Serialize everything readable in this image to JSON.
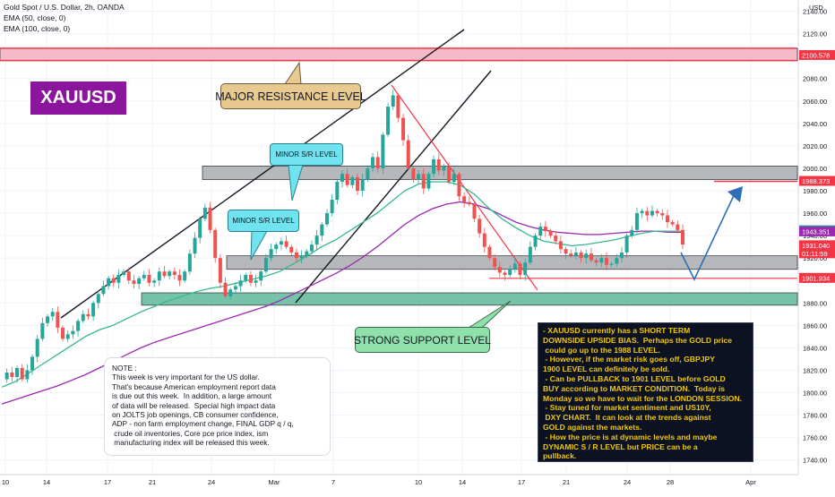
{
  "header": {
    "symbol_line": "Gold Spot / U.S. Dollar, 2h, OANDA",
    "indicator_1": "EMA (50, close, 0)",
    "indicator_2": "EMA (100, close, 0)",
    "currency": "USD"
  },
  "chart_data": {
    "type": "candlestick",
    "title": "Gold Spot / U.S. Dollar, 2h, OANDA",
    "symbol_tag": "XAUUSD",
    "y_axis": {
      "unit": "USD",
      "range": [
        1727,
        2150
      ],
      "ticks": [
        2140,
        2120,
        2100,
        2080,
        2060,
        2040,
        2020,
        2000,
        1980,
        1960,
        1940,
        1920,
        1900,
        1880,
        1860,
        1840,
        1820,
        1800,
        1780,
        1760,
        1740
      ]
    },
    "x_axis": {
      "ticks": [
        "10",
        "14",
        "17",
        "21",
        "24",
        "Mar",
        "7",
        "10",
        "14",
        "17",
        "21",
        "24",
        "28",
        "Apr"
      ]
    },
    "price_labels": [
      {
        "value": 2100.578,
        "text": "2100.578",
        "color": "#f23645"
      },
      {
        "value": 1988.373,
        "text": "1988.373",
        "color": "#f23645"
      },
      {
        "value": 1944.44,
        "text": "1944.440",
        "color": "#26a69a"
      },
      {
        "value": 1943.351,
        "text": "1943.351",
        "color": "#9c27b0"
      },
      {
        "value": 1931.04,
        "text": "1931.040",
        "color": "#f23645",
        "sub": "01:11:59"
      },
      {
        "value": 1901.934,
        "text": "1901.934",
        "color": "#f23645"
      }
    ],
    "price_path": [
      1812,
      1818,
      1814,
      1822,
      1812,
      1820,
      1832,
      1848,
      1862,
      1868,
      1872,
      1858,
      1848,
      1852,
      1855,
      1864,
      1870,
      1868,
      1880,
      1888,
      1895,
      1902,
      1898,
      1905,
      1908,
      1900,
      1897,
      1902,
      1905,
      1898,
      1900,
      1908,
      1904,
      1908,
      1905,
      1900,
      1908,
      1924,
      1938,
      1955,
      1965,
      1945,
      1920,
      1898,
      1886,
      1892,
      1895,
      1900,
      1905,
      1898,
      1900,
      1908,
      1920,
      1928,
      1932,
      1935,
      1930,
      1925,
      1920,
      1922,
      1926,
      1932,
      1940,
      1950,
      1960,
      1972,
      1988,
      1995,
      1985,
      1992,
      1980,
      1990,
      2000,
      2010,
      2000,
      2030,
      2055,
      2065,
      2045,
      2025,
      2000,
      1990,
      1995,
      1982,
      1995,
      2008,
      1998,
      2002,
      1988,
      1995,
      1975,
      1970,
      1968,
      1955,
      1942,
      1930,
      1920,
      1912,
      1907,
      1905,
      1910,
      1915,
      1905,
      1916,
      1930,
      1940,
      1948,
      1944,
      1940,
      1935,
      1928,
      1924,
      1922,
      1925,
      1920,
      1924,
      1918,
      1916,
      1920,
      1914,
      1915,
      1920,
      1925,
      1940,
      1945,
      1960,
      1962,
      1958,
      1962,
      1960,
      1958,
      1952,
      1950,
      1945,
      1932
    ],
    "ema50": [
      1805,
      1810,
      1818,
      1826,
      1834,
      1842,
      1850,
      1856,
      1860,
      1866,
      1872,
      1877,
      1882,
      1886,
      1890,
      1893,
      1895,
      1898,
      1901,
      1904,
      1908,
      1915,
      1922,
      1930,
      1936,
      1944,
      1952,
      1960,
      1970,
      1980,
      1986,
      1988,
      1988,
      1985,
      1977,
      1965,
      1955,
      1947,
      1940,
      1935,
      1933,
      1931,
      1932,
      1934,
      1936,
      1939,
      1942,
      1944,
      1944,
      1944
    ],
    "ema100": [
      1790,
      1794,
      1798,
      1802,
      1806,
      1811,
      1816,
      1822,
      1828,
      1834,
      1840,
      1845,
      1849,
      1853,
      1857,
      1861,
      1865,
      1869,
      1873,
      1877,
      1882,
      1888,
      1894,
      1900,
      1906,
      1913,
      1921,
      1930,
      1940,
      1950,
      1958,
      1964,
      1968,
      1970,
      1968,
      1964,
      1958,
      1952,
      1948,
      1945,
      1943,
      1942,
      1941,
      1941,
      1942,
      1943,
      1944,
      1944,
      1943,
      1943
    ],
    "levels": [
      {
        "name": "major-resistance",
        "from": 2096,
        "to": 2107,
        "color": "#f3aec0"
      },
      {
        "name": "minor-sr",
        "from": 1990,
        "to": 2002,
        "color": "#a9abb0"
      },
      {
        "name": "minor-sr-2",
        "from": 1910,
        "to": 1922,
        "color": "#a9abb0"
      },
      {
        "name": "strong-support",
        "from": 1878,
        "to": 1889,
        "color": "#5fb89a"
      }
    ]
  },
  "annotations": {
    "major_resistance": "MAJOR RESISTANCE LEVEL",
    "minor_sr_top": "MINOR S/R LEVEL",
    "minor_sr_bottom": "MINOR S/R LEVEL",
    "strong_support": "STRONG SUPPORT LEVEL"
  },
  "note_text": "NOTE :\nThis week is very important for the US dollar.\nThat's because American employment report data\nis due out this week.  In addition, a large amount\nof data will be released.  Special high impact data\non JOLTS job openings, CB consumer confidence,\nADP - non farm employment change, FINAL GDP q / q,\n crude oil inventories, Core pce price index, ism\n manufacturing index will be released this week.",
  "analysis_text": "- XAUUSD currently has a SHORT TERM\nDOWNSIDE UPSIDE BIAS.  Perhaps the GOLD price\n could go up to the 1988 LEVEL.\n - However, if the market risk goes off, GBPJPY\n1900 LEVEL can definitely be sold.\n - Can be PULLBACK to 1901 LEVEL before GOLD\nBUY according to MARKET CONDITION.  Today is\nMonday so we have to wait for the LONDON SESSION.\n - Stay tuned for market sentiment and US10Y,\n DXY CHART.  It can look at the trends against\nGOLD against the markets.\n - How the price is at dynamic levels and maybe\nDYNAMIC S / R LEVEL but PRICE can be a\npullback.",
  "colors": {
    "up": "#26a69a",
    "down": "#ef5350",
    "ema50": "#35b98c",
    "ema100": "#9c27b0"
  }
}
